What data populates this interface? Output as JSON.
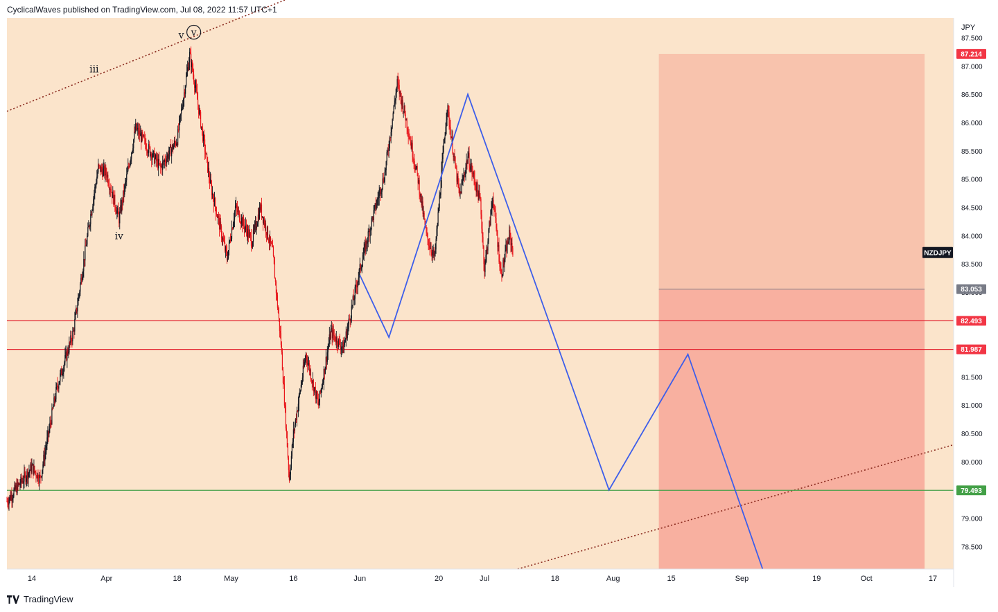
{
  "header": {
    "text": "CyclicalWaves published on TradingView.com, Jul 08, 2022 11:57 UTC+1"
  },
  "footer": {
    "brand": "TradingView"
  },
  "colors": {
    "background": "#fbe4cb",
    "bull": "#131722",
    "bear": "#e8161b",
    "projection": "#3d5eea",
    "resistance": "#e21b2a",
    "support": "#43a047",
    "channel": "#8a2a1e",
    "zone_upper": "#f8c3ad",
    "zone_lower": "#f8b0a0"
  },
  "chart_data": {
    "type": "candlestick",
    "symbol": "NZDJPY",
    "currency": "JPY",
    "x_ticks": [
      "14",
      "Apr",
      "18",
      "May",
      "16",
      "Jun",
      "20",
      "Jul",
      "18",
      "Aug",
      "15",
      "Sep",
      "19",
      "Oct",
      "17"
    ],
    "y_ticks": [
      "87.500",
      "87.000",
      "86.500",
      "86.000",
      "85.500",
      "85.000",
      "84.500",
      "84.000",
      "83.500",
      "83.000",
      "82.500",
      "82.000",
      "81.500",
      "81.000",
      "80.500",
      "80.000",
      "79.500",
      "79.000",
      "78.500"
    ],
    "y_range": [
      78.1,
      87.85
    ],
    "x_range_days": [
      "2022-03-08",
      "2022-10-22"
    ],
    "candles_range": [
      "2022-03-08",
      "2022-07-08"
    ],
    "price_path": [
      [
        "2022-03-08",
        79.3
      ],
      [
        "2022-03-14",
        79.9
      ],
      [
        "2022-03-16",
        79.7
      ],
      [
        "2022-03-20",
        81.3
      ],
      [
        "2022-03-24",
        82.3
      ],
      [
        "2022-03-28",
        84.3
      ],
      [
        "2022-03-30",
        85.2
      ],
      [
        "2022-04-01",
        85.1
      ],
      [
        "2022-04-04",
        84.3
      ],
      [
        "2022-04-08",
        85.9
      ],
      [
        "2022-04-14",
        85.2
      ],
      [
        "2022-04-18",
        85.7
      ],
      [
        "2022-04-21",
        87.2
      ],
      [
        "2022-04-22",
        86.8
      ],
      [
        "2022-04-26",
        84.9
      ],
      [
        "2022-04-30",
        83.6
      ],
      [
        "2022-05-02",
        84.5
      ],
      [
        "2022-05-06",
        83.9
      ],
      [
        "2022-05-08",
        84.5
      ],
      [
        "2022-05-11",
        83.7
      ],
      [
        "2022-05-13",
        82.1
      ],
      [
        "2022-05-15",
        79.7
      ],
      [
        "2022-05-16",
        80.5
      ],
      [
        "2022-05-19",
        81.9
      ],
      [
        "2022-05-22",
        81.0
      ],
      [
        "2022-05-25",
        82.3
      ],
      [
        "2022-05-28",
        82.0
      ],
      [
        "2022-06-01",
        83.4
      ],
      [
        "2022-06-04",
        84.3
      ],
      [
        "2022-06-07",
        85.1
      ],
      [
        "2022-06-10",
        86.7
      ],
      [
        "2022-06-12",
        86.1
      ],
      [
        "2022-06-15",
        85.0
      ],
      [
        "2022-06-17",
        84.0
      ],
      [
        "2022-06-19",
        83.6
      ],
      [
        "2022-06-22",
        86.3
      ],
      [
        "2022-06-24",
        85.2
      ],
      [
        "2022-06-25",
        84.7
      ],
      [
        "2022-06-27",
        85.4
      ],
      [
        "2022-06-30",
        84.6
      ],
      [
        "2022-07-01",
        83.4
      ],
      [
        "2022-07-03",
        84.7
      ],
      [
        "2022-07-05",
        83.3
      ],
      [
        "2022-07-07",
        84.0
      ],
      [
        "2022-07-08",
        83.7
      ]
    ],
    "projection": [
      [
        "2022-06-01",
        83.3
      ],
      [
        "2022-06-08",
        82.2
      ],
      [
        "2022-06-27",
        86.5
      ],
      [
        "2022-07-31",
        79.5
      ],
      [
        "2022-08-19",
        81.9
      ],
      [
        "2022-09-06",
        78.1
      ]
    ],
    "horizontal_lines": [
      {
        "price": 82.493,
        "label": "82.493",
        "color": "#e21b2a"
      },
      {
        "price": 81.987,
        "label": "81.987",
        "color": "#e21b2a"
      },
      {
        "price": 79.493,
        "label": "79.493",
        "color": "#43a047"
      }
    ],
    "zone": {
      "start": "2022-08-12",
      "end": "2022-10-15",
      "top": 87.214,
      "mid": 83.053,
      "bottom": 78.1,
      "labels": [
        "87.214",
        "83.053"
      ]
    },
    "channel_upper": [
      [
        "2022-03-08",
        86.2
      ],
      [
        "2022-06-01",
        88.7
      ]
    ],
    "channel_lower": [
      [
        "2022-07-09",
        78.1
      ],
      [
        "2022-10-22",
        80.3
      ]
    ],
    "symbol_label": "NZDJPY",
    "symbol_price": 83.7,
    "wave_labels": [
      {
        "text": "iii",
        "date": "2022-03-29",
        "price": 86.9
      },
      {
        "text": "iv",
        "date": "2022-04-04",
        "price": 83.95
      },
      {
        "text": "v",
        "date": "2022-04-19",
        "price": 87.5
      },
      {
        "text": "v",
        "date": "2022-04-22",
        "price": 87.55,
        "circled": true
      }
    ]
  }
}
